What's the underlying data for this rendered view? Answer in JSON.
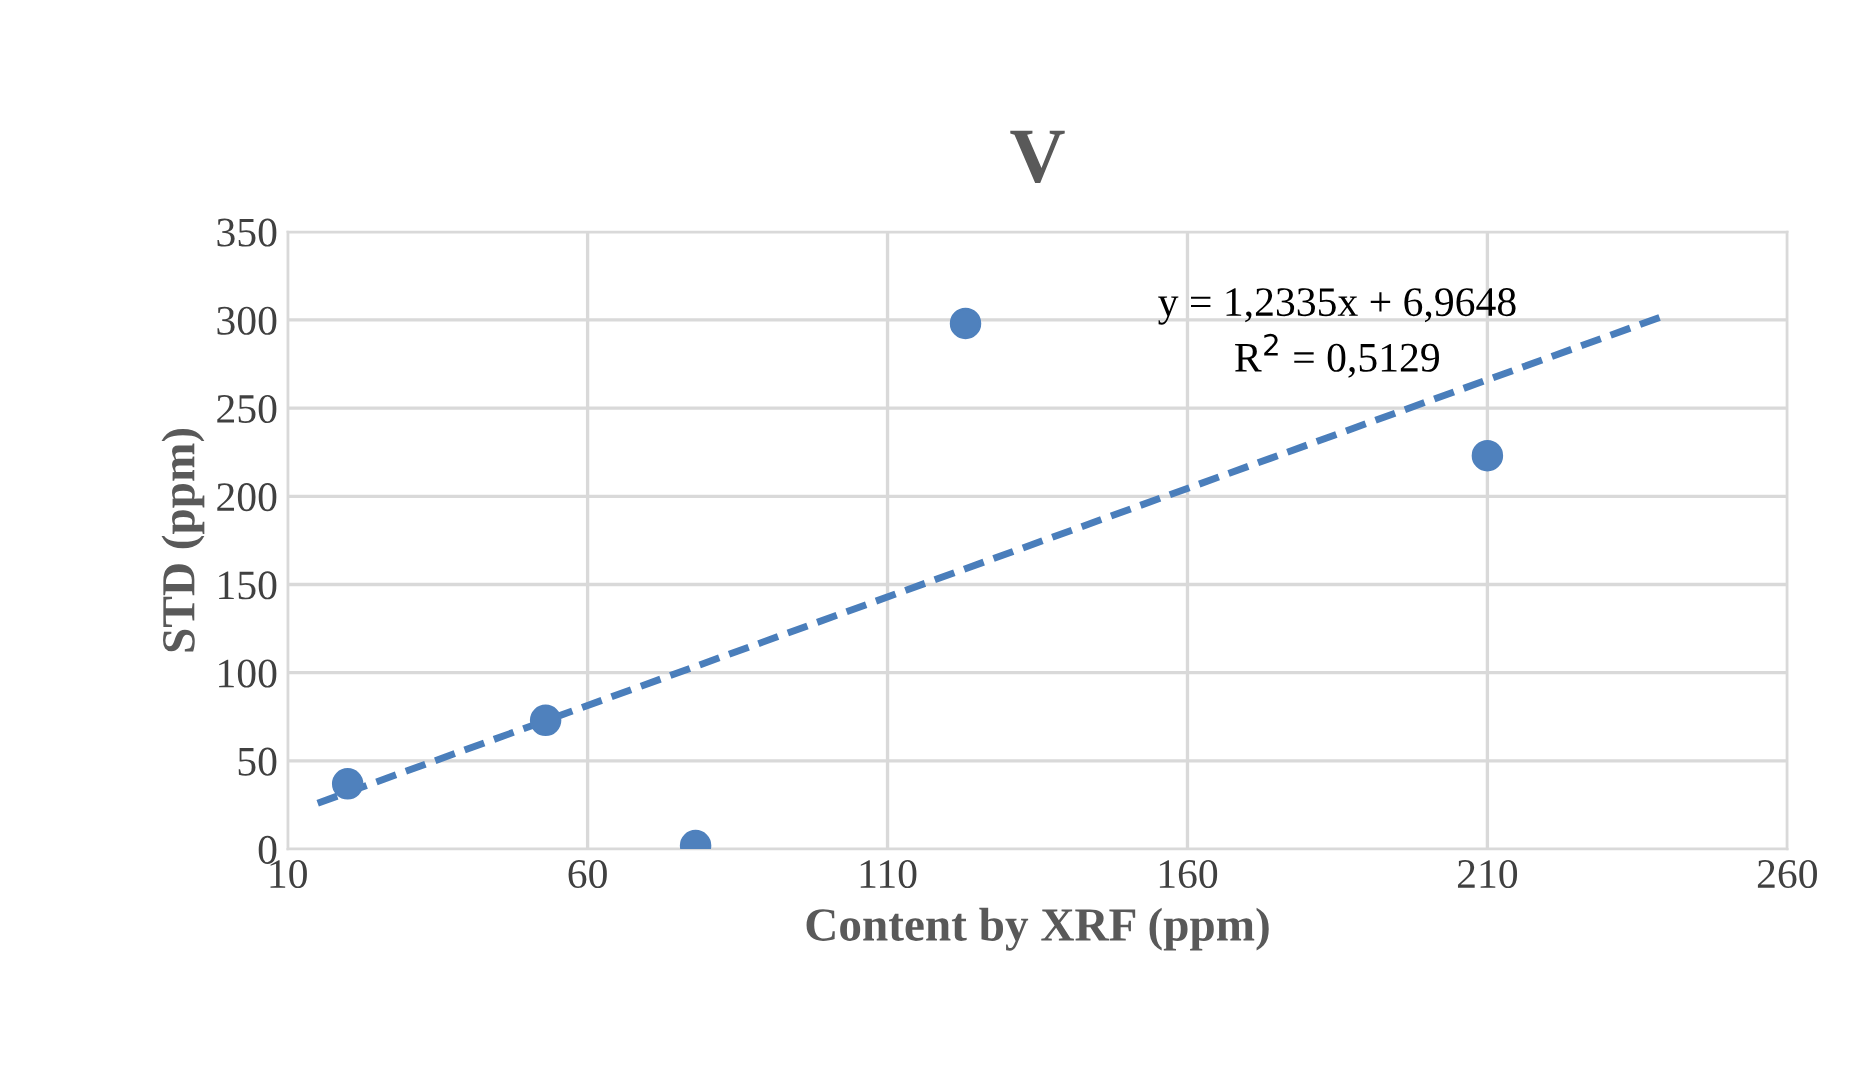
{
  "chart_data": {
    "type": "scatter",
    "title": "V",
    "xlabel": "Content by XRF (ppm)",
    "ylabel": "STD (ppm)",
    "series": [
      {
        "color": "#4f81bd",
        "x": [
          20,
          53,
          78,
          123,
          210
        ],
        "values": [
          37,
          73,
          2,
          298,
          223
        ],
        "marker": "circle"
      },
      {
        "type": "line",
        "color": "#4a7ebb",
        "x": [
          15,
          240
        ],
        "values": [
          26,
          303
        ],
        "line_style": "dashed",
        "marker": "none"
      }
    ],
    "annotations": [
      "y = 1,2335x + 6,9648",
      "R$^{2}$ = 0,5129"
    ],
    "xlim": [
      10,
      260
    ],
    "xticks": [
      10,
      60,
      110,
      160,
      210,
      260
    ],
    "ylim": [
      0,
      350
    ],
    "yticks": [
      0,
      50,
      100,
      150,
      200,
      250,
      300,
      350
    ],
    "grid": true,
    "legend": false
  }
}
